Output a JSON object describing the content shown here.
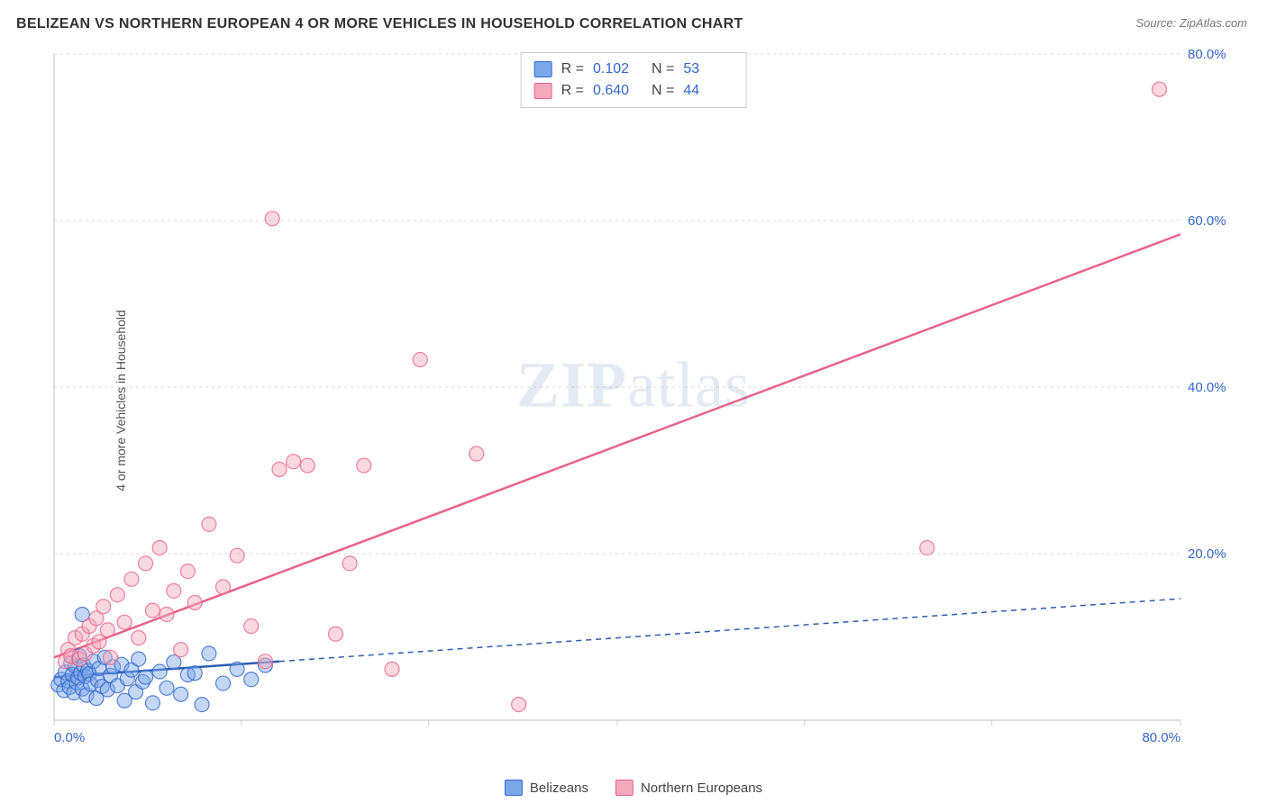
{
  "title": "BELIZEAN VS NORTHERN EUROPEAN 4 OR MORE VEHICLES IN HOUSEHOLD CORRELATION CHART",
  "source": "Source: ZipAtlas.com",
  "ylabel": "4 or more Vehicles in Household",
  "watermark_bold": "ZIP",
  "watermark_light": "atlas",
  "chart": {
    "type": "scatter",
    "background_color": "#ffffff",
    "grid_color": "#d8d8d8",
    "grid_dash": "3,4",
    "axis_line_color": "#cccccc",
    "xlim": [
      0,
      80
    ],
    "ylim": [
      0,
      85
    ],
    "xticks": [
      0,
      13.3,
      26.6,
      40,
      53.3,
      66.6,
      80
    ],
    "yticks": [
      0,
      21.25,
      42.5,
      63.75,
      85
    ],
    "xlabels": [
      "0.0%",
      "",
      "",
      "",
      "",
      "",
      "80.0%"
    ],
    "ylabels_right": [
      "",
      "20.0%",
      "40.0%",
      "60.0%",
      "80.0%"
    ],
    "tick_label_color": "#3366cc",
    "tick_fontsize": 15,
    "marker_radius": 8,
    "marker_opacity": 0.55,
    "marker_stroke_width": 1.2,
    "series": [
      {
        "name": "Belizeans",
        "fill_color": "#7aa7e8",
        "stroke_color": "#3366cc",
        "fill_opacity": 0.45,
        "regression": {
          "x1": 0,
          "y1": 5.5,
          "x2": 80,
          "y2": 15.5,
          "solid_until_x": 16,
          "color": "#2a5db0",
          "width": 2.5,
          "dash": "6,5"
        },
        "points": [
          [
            0.3,
            4.5
          ],
          [
            0.5,
            5.2
          ],
          [
            0.7,
            3.8
          ],
          [
            0.8,
            6.1
          ],
          [
            1.0,
            5.0
          ],
          [
            1.1,
            4.2
          ],
          [
            1.2,
            7.3
          ],
          [
            1.3,
            5.8
          ],
          [
            1.4,
            3.5
          ],
          [
            1.5,
            6.9
          ],
          [
            1.6,
            4.8
          ],
          [
            1.7,
            5.4
          ],
          [
            1.8,
            8.2
          ],
          [
            1.9,
            6.0
          ],
          [
            2.0,
            4.0
          ],
          [
            2.1,
            7.0
          ],
          [
            2.2,
            5.6
          ],
          [
            2.3,
            3.2
          ],
          [
            2.4,
            6.3
          ],
          [
            2.5,
            5.9
          ],
          [
            2.6,
            4.6
          ],
          [
            2.8,
            7.5
          ],
          [
            3.0,
            2.8
          ],
          [
            3.1,
            5.1
          ],
          [
            3.2,
            6.6
          ],
          [
            3.4,
            4.3
          ],
          [
            3.6,
            8.0
          ],
          [
            3.8,
            3.9
          ],
          [
            4.0,
            5.7
          ],
          [
            4.2,
            6.8
          ],
          [
            4.5,
            4.4
          ],
          [
            4.8,
            7.1
          ],
          [
            5.0,
            2.5
          ],
          [
            5.2,
            5.3
          ],
          [
            5.5,
            6.4
          ],
          [
            5.8,
            3.6
          ],
          [
            6.0,
            7.8
          ],
          [
            6.3,
            4.9
          ],
          [
            6.5,
            5.5
          ],
          [
            7.0,
            2.2
          ],
          [
            7.5,
            6.2
          ],
          [
            8.0,
            4.1
          ],
          [
            8.5,
            7.4
          ],
          [
            9.0,
            3.3
          ],
          [
            9.5,
            5.8
          ],
          [
            10.0,
            6.0
          ],
          [
            10.5,
            2.0
          ],
          [
            11.0,
            8.5
          ],
          [
            12.0,
            4.7
          ],
          [
            13.0,
            6.5
          ],
          [
            14.0,
            5.2
          ],
          [
            15.0,
            7.0
          ],
          [
            2.0,
            13.5
          ]
        ]
      },
      {
        "name": "Northern Europeans",
        "fill_color": "#f4a8bb",
        "stroke_color": "#e8628a",
        "fill_opacity": 0.45,
        "regression": {
          "x1": 0,
          "y1": 8,
          "x2": 80,
          "y2": 62,
          "color": "#e8628a",
          "width": 2.5
        },
        "points": [
          [
            0.8,
            7.5
          ],
          [
            1.0,
            9.0
          ],
          [
            1.2,
            8.2
          ],
          [
            1.5,
            10.5
          ],
          [
            1.8,
            7.8
          ],
          [
            2.0,
            11.0
          ],
          [
            2.2,
            8.5
          ],
          [
            2.5,
            12.0
          ],
          [
            2.8,
            9.5
          ],
          [
            3.0,
            13.0
          ],
          [
            3.2,
            10.0
          ],
          [
            3.5,
            14.5
          ],
          [
            3.8,
            11.5
          ],
          [
            4.0,
            8.0
          ],
          [
            4.5,
            16.0
          ],
          [
            5.0,
            12.5
          ],
          [
            5.5,
            18.0
          ],
          [
            6.0,
            10.5
          ],
          [
            6.5,
            20.0
          ],
          [
            7.0,
            14.0
          ],
          [
            7.5,
            22.0
          ],
          [
            8.0,
            13.5
          ],
          [
            8.5,
            16.5
          ],
          [
            9.0,
            9.0
          ],
          [
            9.5,
            19.0
          ],
          [
            10.0,
            15.0
          ],
          [
            11.0,
            25.0
          ],
          [
            12.0,
            17.0
          ],
          [
            13.0,
            21.0
          ],
          [
            14.0,
            12.0
          ],
          [
            15.0,
            7.5
          ],
          [
            16.0,
            32.0
          ],
          [
            17.0,
            33.0
          ],
          [
            18.0,
            32.5
          ],
          [
            20.0,
            11.0
          ],
          [
            21.0,
            20.0
          ],
          [
            22.0,
            32.5
          ],
          [
            24.0,
            6.5
          ],
          [
            26.0,
            46.0
          ],
          [
            30.0,
            34.0
          ],
          [
            33.0,
            2.0
          ],
          [
            15.5,
            64.0
          ],
          [
            62.0,
            22.0
          ],
          [
            78.5,
            80.5
          ]
        ]
      }
    ]
  },
  "stats": {
    "rows": [
      {
        "swatch_fill": "#7aa7e8",
        "swatch_stroke": "#3366cc",
        "r": "0.102",
        "n": "53"
      },
      {
        "swatch_fill": "#f4a8bb",
        "swatch_stroke": "#e8628a",
        "r": "0.640",
        "n": "44"
      }
    ],
    "labels": {
      "r": "R  =",
      "n": "N  ="
    }
  },
  "legend": {
    "items": [
      {
        "label": "Belizeans",
        "fill": "#7aa7e8",
        "stroke": "#3366cc"
      },
      {
        "label": "Northern Europeans",
        "fill": "#f4a8bb",
        "stroke": "#e8628a"
      }
    ]
  }
}
